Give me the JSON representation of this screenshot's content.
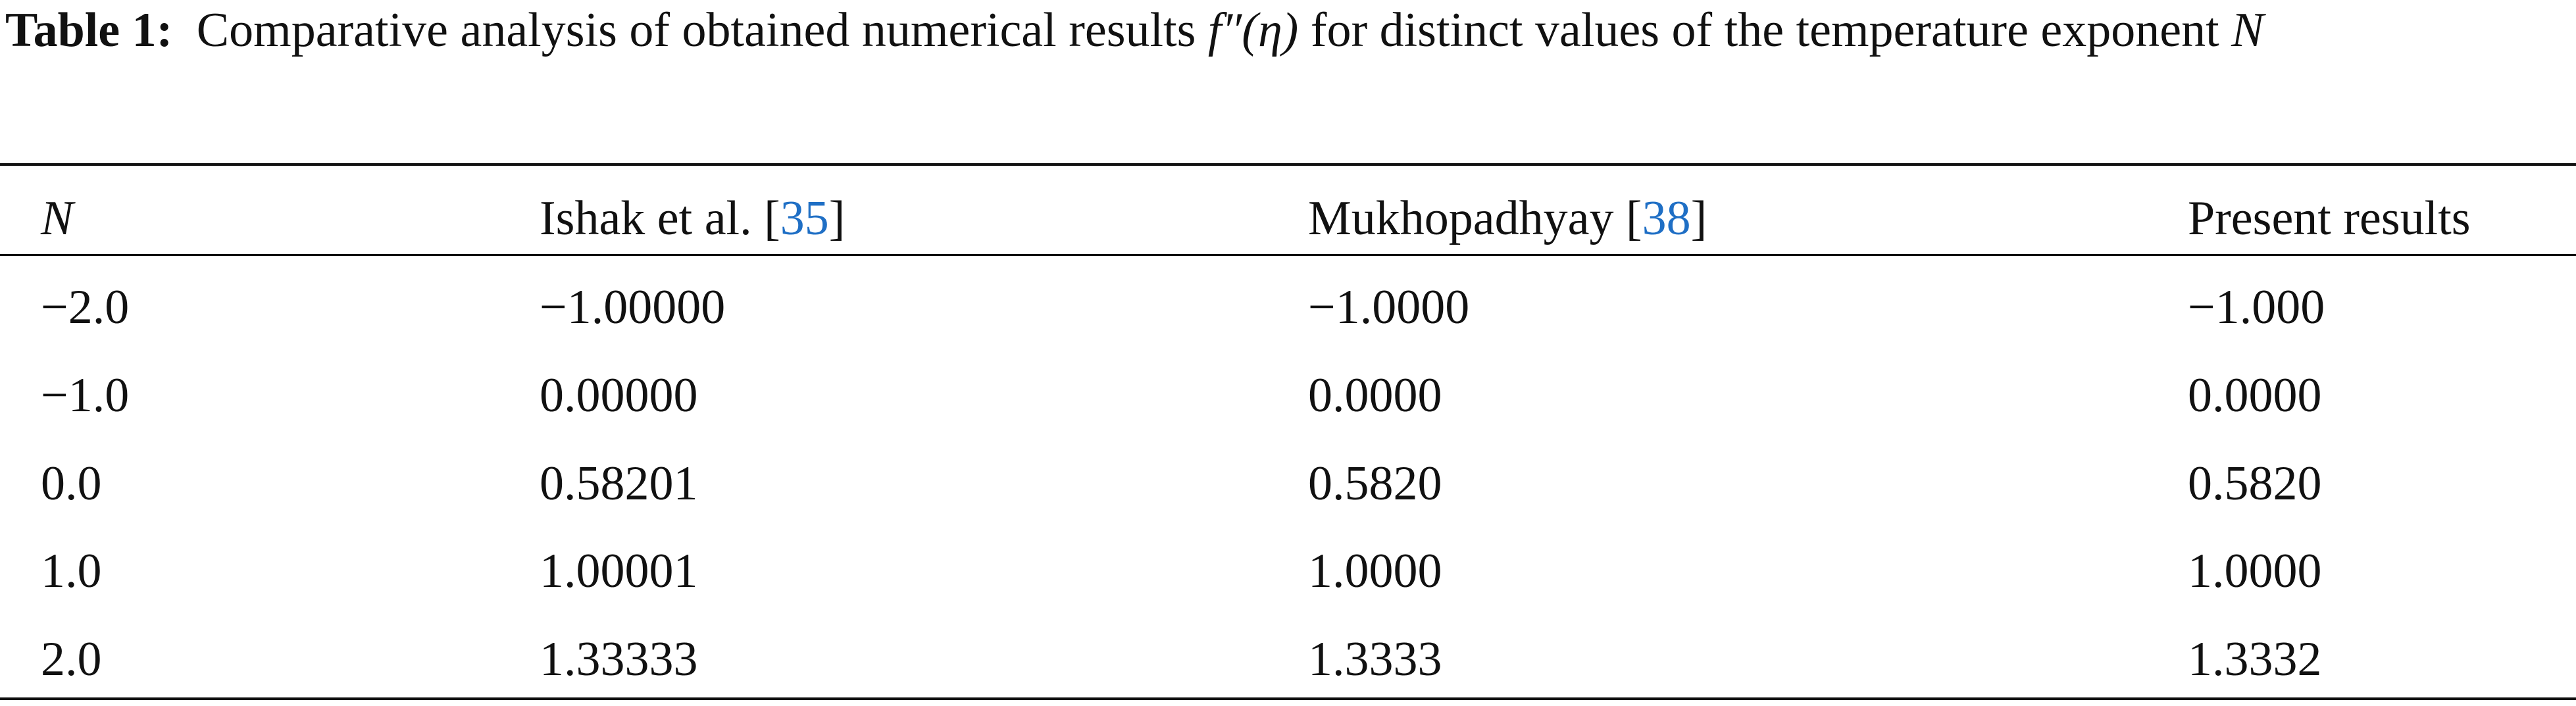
{
  "caption": {
    "label": "Table 1:",
    "text_before": "Comparative analysis of obtained numerical results",
    "math": "f″(η)",
    "text_after": "for distinct values of the temperature exponent",
    "variable": "N"
  },
  "table": {
    "header": [
      {
        "text": "N"
      },
      {
        "text": "Ishak et al. [",
        "ref": "35",
        "close": "]"
      },
      {
        "text": "Mukhopadhyay [",
        "ref": "38",
        "close": "]"
      },
      {
        "text": "Present results"
      }
    ],
    "rows": [
      [
        "−2.0",
        "−1.00000",
        "−1.0000",
        "−1.000"
      ],
      [
        "−1.0",
        "0.00000",
        "0.0000",
        "0.0000"
      ],
      [
        "0.0",
        "0.58201",
        "0.5820",
        "0.5820"
      ],
      [
        "1.0",
        "1.00001",
        "1.0000",
        "1.0000"
      ],
      [
        "2.0",
        "1.33333",
        "1.3333",
        "1.3332"
      ]
    ]
  }
}
